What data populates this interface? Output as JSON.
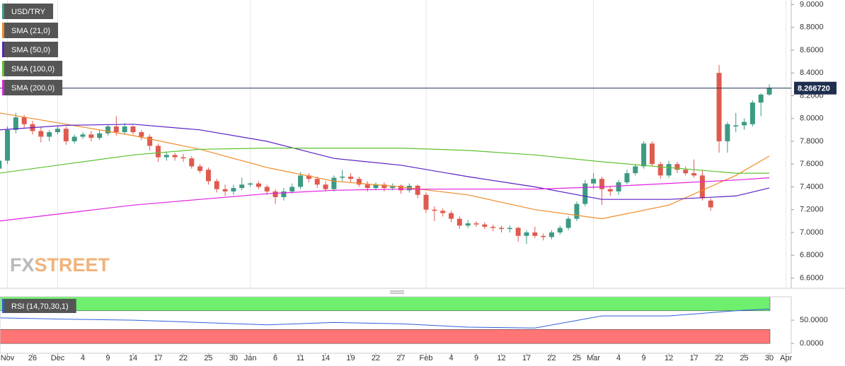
{
  "chart_data": [
    {
      "type": "candlestick",
      "name": "USD/TRY",
      "color_up": "#3c9a84",
      "color_down": "#df5a4e",
      "ohlc": [
        [
          7.56,
          7.66,
          7.52,
          7.63
        ],
        [
          7.63,
          7.93,
          7.6,
          7.9
        ],
        [
          7.9,
          8.05,
          7.87,
          8.01
        ],
        [
          8.01,
          8.03,
          7.92,
          7.95
        ],
        [
          7.95,
          7.98,
          7.86,
          7.89
        ],
        [
          7.89,
          7.92,
          7.79,
          7.84
        ],
        [
          7.84,
          7.9,
          7.8,
          7.88
        ],
        [
          7.88,
          7.93,
          7.86,
          7.91
        ],
        [
          7.91,
          7.93,
          7.77,
          7.8
        ],
        [
          7.8,
          7.86,
          7.78,
          7.84
        ],
        [
          7.84,
          7.88,
          7.82,
          7.86
        ],
        [
          7.86,
          7.89,
          7.8,
          7.83
        ],
        [
          7.83,
          7.9,
          7.81,
          7.87
        ],
        [
          7.87,
          7.95,
          7.85,
          7.93
        ],
        [
          7.93,
          8.02,
          7.85,
          7.88
        ],
        [
          7.88,
          7.96,
          7.86,
          7.93
        ],
        [
          7.93,
          7.94,
          7.86,
          7.88
        ],
        [
          7.88,
          7.9,
          7.81,
          7.84
        ],
        [
          7.84,
          7.86,
          7.72,
          7.76
        ],
        [
          7.76,
          7.78,
          7.62,
          7.66
        ],
        [
          7.66,
          7.71,
          7.63,
          7.68
        ],
        [
          7.68,
          7.7,
          7.63,
          7.66
        ],
        [
          7.66,
          7.69,
          7.62,
          7.65
        ],
        [
          7.65,
          7.67,
          7.56,
          7.58
        ],
        [
          7.58,
          7.6,
          7.52,
          7.54
        ],
        [
          7.55,
          7.57,
          7.42,
          7.45
        ],
        [
          7.45,
          7.47,
          7.35,
          7.38
        ],
        [
          7.38,
          7.42,
          7.32,
          7.36
        ],
        [
          7.36,
          7.42,
          7.33,
          7.39
        ],
        [
          7.39,
          7.48,
          7.37,
          7.42
        ],
        [
          7.42,
          7.44,
          7.4,
          7.43
        ],
        [
          7.43,
          7.45,
          7.38,
          7.4
        ],
        [
          7.4,
          7.42,
          7.33,
          7.36
        ],
        [
          7.36,
          7.38,
          7.25,
          7.31
        ],
        [
          7.31,
          7.39,
          7.28,
          7.36
        ],
        [
          7.36,
          7.43,
          7.34,
          7.4
        ],
        [
          7.4,
          7.53,
          7.38,
          7.5
        ],
        [
          7.5,
          7.52,
          7.44,
          7.47
        ],
        [
          7.47,
          7.49,
          7.39,
          7.42
        ],
        [
          7.42,
          7.45,
          7.36,
          7.38
        ],
        [
          7.38,
          7.5,
          7.36,
          7.48
        ],
        [
          7.48,
          7.55,
          7.45,
          7.49
        ],
        [
          7.49,
          7.52,
          7.44,
          7.47
        ],
        [
          7.47,
          7.49,
          7.4,
          7.42
        ],
        [
          7.42,
          7.45,
          7.36,
          7.39
        ],
        [
          7.39,
          7.44,
          7.37,
          7.42
        ],
        [
          7.42,
          7.44,
          7.36,
          7.39
        ],
        [
          7.39,
          7.43,
          7.37,
          7.41
        ],
        [
          7.41,
          7.42,
          7.34,
          7.37
        ],
        [
          7.37,
          7.43,
          7.35,
          7.41
        ],
        [
          7.41,
          7.42,
          7.3,
          7.33
        ],
        [
          7.33,
          7.35,
          7.17,
          7.2
        ],
        [
          7.2,
          7.23,
          7.1,
          7.19
        ],
        [
          7.19,
          7.21,
          7.14,
          7.17
        ],
        [
          7.17,
          7.19,
          7.09,
          7.12
        ],
        [
          7.12,
          7.14,
          7.03,
          7.06
        ],
        [
          7.06,
          7.11,
          7.04,
          7.08
        ],
        [
          7.08,
          7.1,
          7.05,
          7.07
        ],
        [
          7.07,
          7.09,
          7.03,
          7.05
        ],
        [
          7.05,
          7.07,
          7.01,
          7.04
        ],
        [
          7.04,
          7.06,
          7.0,
          7.03
        ],
        [
          7.03,
          7.06,
          7.0,
          7.04
        ],
        [
          7.04,
          7.05,
          6.92,
          6.97
        ],
        [
          6.97,
          7.02,
          6.9,
          7.0
        ],
        [
          7.0,
          7.05,
          6.95,
          6.97
        ],
        [
          6.97,
          6.99,
          6.93,
          6.96
        ],
        [
          6.96,
          7.02,
          6.94,
          7.0
        ],
        [
          7.0,
          7.06,
          6.98,
          7.04
        ],
        [
          7.04,
          7.14,
          7.02,
          7.12
        ],
        [
          7.12,
          7.27,
          7.1,
          7.25
        ],
        [
          7.25,
          7.46,
          7.23,
          7.43
        ],
        [
          7.43,
          7.52,
          7.38,
          7.47
        ],
        [
          7.47,
          7.49,
          7.24,
          7.38
        ],
        [
          7.38,
          7.4,
          7.32,
          7.36
        ],
        [
          7.36,
          7.46,
          7.33,
          7.44
        ],
        [
          7.44,
          7.55,
          7.42,
          7.52
        ],
        [
          7.52,
          7.6,
          7.5,
          7.58
        ],
        [
          7.58,
          7.8,
          7.56,
          7.78
        ],
        [
          7.78,
          7.8,
          7.58,
          7.6
        ],
        [
          7.6,
          7.62,
          7.47,
          7.5
        ],
        [
          7.5,
          7.63,
          7.48,
          7.6
        ],
        [
          7.6,
          7.62,
          7.52,
          7.55
        ],
        [
          7.55,
          7.58,
          7.5,
          7.52
        ],
        [
          7.52,
          7.64,
          7.48,
          7.5
        ],
        [
          7.5,
          7.55,
          7.28,
          7.3
        ],
        [
          7.28,
          7.3,
          7.19,
          7.22
        ],
        [
          8.4,
          8.47,
          7.7,
          7.8
        ],
        [
          7.8,
          7.97,
          7.7,
          7.95
        ],
        [
          7.93,
          8.05,
          7.88,
          7.94
        ],
        [
          7.94,
          8.0,
          7.9,
          7.97
        ],
        [
          7.95,
          8.16,
          7.93,
          8.14
        ],
        [
          8.14,
          8.22,
          8.02,
          8.21
        ],
        [
          8.21,
          8.3,
          8.2,
          8.27
        ]
      ],
      "series": [
        {
          "name": "SMA (21,0)",
          "color": "#f08a24",
          "x": [
            0,
            8,
            16,
            24,
            32,
            40,
            48,
            56,
            64,
            72,
            80,
            88,
            92
          ],
          "values": [
            8.05,
            7.95,
            7.85,
            7.73,
            7.57,
            7.45,
            7.4,
            7.33,
            7.2,
            7.12,
            7.24,
            7.5,
            7.67
          ]
        },
        {
          "name": "SMA (50,0)",
          "color": "#5b1fc4",
          "x": [
            0,
            8,
            16,
            24,
            32,
            40,
            48,
            56,
            64,
            72,
            80,
            88,
            92
          ],
          "values": [
            7.9,
            7.94,
            7.95,
            7.9,
            7.8,
            7.65,
            7.59,
            7.49,
            7.4,
            7.29,
            7.29,
            7.32,
            7.39
          ]
        },
        {
          "name": "SMA (100,0)",
          "color": "#5cc22e",
          "x": [
            0,
            8,
            16,
            24,
            32,
            40,
            48,
            56,
            64,
            72,
            80,
            88,
            92
          ],
          "values": [
            7.52,
            7.6,
            7.68,
            7.73,
            7.74,
            7.74,
            7.74,
            7.72,
            7.68,
            7.62,
            7.57,
            7.52,
            7.52
          ]
        },
        {
          "name": "SMA (200,0)",
          "color": "#e020e0",
          "x": [
            0,
            8,
            16,
            24,
            32,
            40,
            48,
            56,
            64,
            72,
            80,
            88,
            92
          ],
          "values": [
            7.1,
            7.17,
            7.24,
            7.29,
            7.34,
            7.37,
            7.38,
            7.38,
            7.38,
            7.4,
            7.43,
            7.46,
            7.48
          ]
        }
      ],
      "ylim": [
        6.51,
        9.04
      ],
      "yticks": [
        {
          "value": 6.6,
          "label": "6.6000"
        },
        {
          "value": 6.8,
          "label": "6.8000"
        },
        {
          "value": 7.0,
          "label": "7.0000"
        },
        {
          "value": 7.2,
          "label": "7.2000"
        },
        {
          "value": 7.4,
          "label": "7.4000"
        },
        {
          "value": 7.6,
          "label": "7.6000"
        },
        {
          "value": 7.8,
          "label": "7.8000"
        },
        {
          "value": 8.0,
          "label": "8.0000"
        },
        {
          "value": 8.2,
          "label": "8.2000"
        },
        {
          "value": 8.4,
          "label": "8.4000"
        },
        {
          "value": 8.6,
          "label": "8.6000"
        },
        {
          "value": 8.8,
          "label": "8.8000"
        },
        {
          "value": 9.0,
          "label": "9.0000"
        }
      ],
      "last_price": {
        "value": 8.26672,
        "label": "8.266720"
      },
      "logo": {
        "fx": "FX",
        "street": "STREET"
      }
    },
    {
      "type": "line",
      "title": "RSI (14,70,30,1)",
      "series": [
        {
          "color": "#2f5fd8",
          "x": [
            0,
            8,
            16,
            24,
            32,
            40,
            48,
            56,
            64,
            72,
            80,
            88,
            92
          ],
          "values": [
            55,
            52,
            50,
            45,
            40,
            45,
            42,
            35,
            33,
            59,
            59,
            70,
            74
          ]
        }
      ],
      "bands": [
        {
          "from": 70,
          "to": 100,
          "color": "#6ef06e"
        },
        {
          "from": 0,
          "to": 30,
          "color": "#ff7575"
        }
      ],
      "ylim": [
        -21,
        100
      ],
      "yticks": [
        {
          "value": 0,
          "label": "0.0000"
        },
        {
          "value": 50,
          "label": "50.0000"
        }
      ],
      "xticks": [
        {
          "value": 1,
          "label": "Nov"
        },
        {
          "value": 4,
          "label": "26"
        },
        {
          "value": 7,
          "label": "Dec"
        },
        {
          "value": 10,
          "label": "4"
        },
        {
          "value": 13,
          "label": "9"
        },
        {
          "value": 16,
          "label": "14"
        },
        {
          "value": 19,
          "label": "17"
        },
        {
          "value": 22,
          "label": "22"
        },
        {
          "value": 25,
          "label": "25"
        },
        {
          "value": 28,
          "label": "30"
        },
        {
          "value": 30,
          "label": "Jan"
        },
        {
          "value": 33,
          "label": "6"
        },
        {
          "value": 36,
          "label": "11"
        },
        {
          "value": 39,
          "label": "14"
        },
        {
          "value": 42,
          "label": "19"
        },
        {
          "value": 45,
          "label": "22"
        },
        {
          "value": 48,
          "label": "27"
        },
        {
          "value": 51,
          "label": "Feb"
        },
        {
          "value": 54,
          "label": "4"
        },
        {
          "value": 57,
          "label": "9"
        },
        {
          "value": 60,
          "label": "12"
        },
        {
          "value": 63,
          "label": "17"
        },
        {
          "value": 66,
          "label": "22"
        },
        {
          "value": 69,
          "label": "25"
        },
        {
          "value": 71,
          "label": "Mar"
        },
        {
          "value": 74,
          "label": "4"
        },
        {
          "value": 77,
          "label": "9"
        },
        {
          "value": 80,
          "label": "12"
        },
        {
          "value": 83,
          "label": "17"
        },
        {
          "value": 86,
          "label": "22"
        },
        {
          "value": 89,
          "label": "25"
        },
        {
          "value": 92,
          "label": "30"
        },
        {
          "value": 94,
          "label": "Apr"
        }
      ]
    }
  ]
}
